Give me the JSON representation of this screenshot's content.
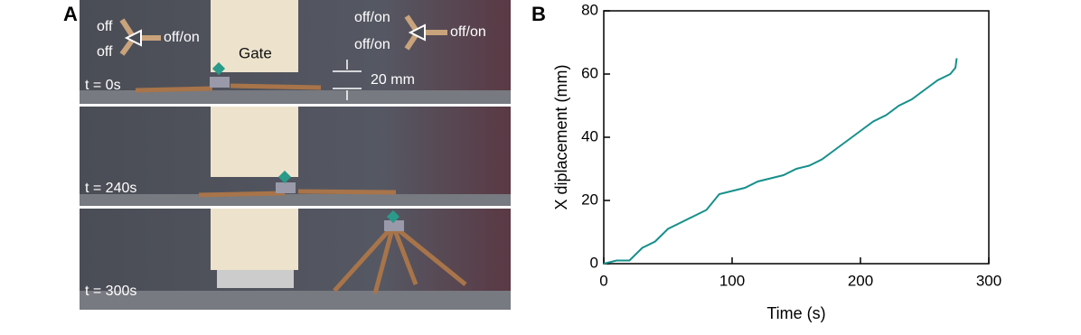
{
  "panel_a": {
    "letter": "A",
    "labels": [
      "off",
      "off",
      "off/on",
      "Gate",
      "off/on",
      "off/on",
      "off/on",
      "20 mm",
      "t = 0s",
      "t = 240s",
      "t = 300s"
    ]
  },
  "chart_data": {
    "type": "line",
    "letter": "B",
    "xlabel": "Time (s)",
    "ylabel": "X diplacement (mm)",
    "x": [
      0,
      10,
      20,
      30,
      40,
      50,
      60,
      70,
      80,
      90,
      100,
      110,
      120,
      130,
      140,
      150,
      160,
      170,
      180,
      190,
      200,
      210,
      220,
      230,
      240,
      250,
      260,
      270,
      274,
      275
    ],
    "values": [
      0,
      1,
      1,
      5,
      7,
      11,
      13,
      15,
      17,
      22,
      23,
      24,
      26,
      27,
      28,
      30,
      31,
      33,
      36,
      39,
      42,
      45,
      47,
      50,
      52,
      55,
      58,
      60,
      62,
      65
    ],
    "color": "#16908c",
    "xlim": [
      0,
      300
    ],
    "xticks": [
      0,
      100,
      200,
      300
    ],
    "ylim": [
      0,
      80
    ],
    "yticks": [
      0,
      20,
      40,
      60,
      80
    ]
  }
}
